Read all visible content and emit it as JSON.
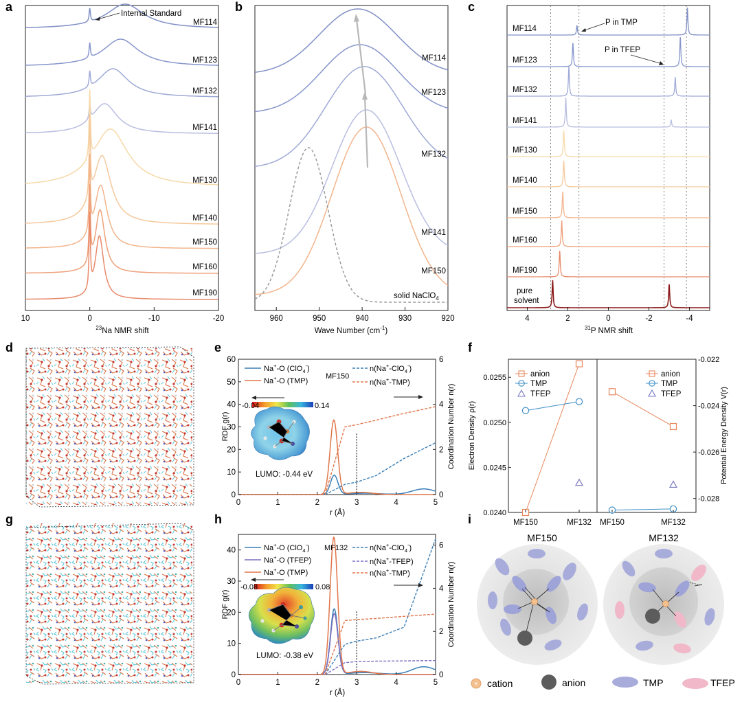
{
  "panel_letters": [
    "a",
    "b",
    "c",
    "d",
    "e",
    "f",
    "g",
    "h",
    "i"
  ],
  "colors": {
    "MF114": "#7f8fc5",
    "MF123": "#8796cc",
    "MF132": "#9ea9d6",
    "MF141": "#b8bde0",
    "MF130": "#f6d9a8",
    "MF140": "#f5c99c",
    "MF150": "#f2b48b",
    "MF160": "#eea07a",
    "MF190": "#e8896a",
    "pure solvent": "#8b1a1a",
    "solid": "#9a9a9a",
    "blue": "#3b7fb6",
    "orange": "#e0764a",
    "purple": "#7b6fbf",
    "anion_sq": "#e8875d",
    "tmp_circle": "#3b8fc7",
    "tfep_tri": "#7a7ac0"
  },
  "chart_data": [
    {
      "id": "a",
      "type": "line",
      "title": "",
      "xlabel": "23Na NMR shift",
      "xlabel_sup": "23",
      "xlabel_rest": "Na NMR shift",
      "ylabel": "",
      "xlim": [
        10,
        -20
      ],
      "xticks": [
        "10",
        "0",
        "-10",
        "-20"
      ],
      "annotation": "Internal Standard",
      "series": [
        {
          "name": "MF114",
          "peak_ppm": -5.5,
          "width": 3.6
        },
        {
          "name": "MF123",
          "peak_ppm": -4.8,
          "width": 3.4
        },
        {
          "name": "MF132",
          "peak_ppm": -3.6,
          "width": 2.9
        },
        {
          "name": "MF141",
          "peak_ppm": -2.3,
          "width": 2.4
        },
        {
          "name": "MF130",
          "peak_ppm": -3.2,
          "width": 3.3
        },
        {
          "name": "MF140",
          "peak_ppm": -1.9,
          "width": 1.7
        },
        {
          "name": "MF150",
          "peak_ppm": -1.7,
          "width": 1.2
        },
        {
          "name": "MF160",
          "peak_ppm": -1.6,
          "width": 0.9
        },
        {
          "name": "MF190",
          "peak_ppm": -1.5,
          "width": 0.8
        }
      ]
    },
    {
      "id": "b",
      "type": "line",
      "title": "",
      "xlabel": "Wave Number (cm-1)",
      "xlabel_main": "Wave Number (cm",
      "xlabel_sup": "-1",
      "xlabel_end": ")",
      "ylabel": "",
      "xlim": [
        965,
        920
      ],
      "xticks": [
        "960",
        "950",
        "940",
        "930",
        "920"
      ],
      "series": [
        {
          "name": "MF114",
          "center": 941,
          "width": 9
        },
        {
          "name": "MF123",
          "center": 940.5,
          "width": 9
        },
        {
          "name": "MF132",
          "center": 939.5,
          "width": 9
        },
        {
          "name": "MF141",
          "center": 939,
          "width": 8
        },
        {
          "name": "MF150",
          "center": 939,
          "width": 8
        },
        {
          "name": "solid NaClO4",
          "center": 952.5,
          "width": 4.5
        }
      ],
      "solid_label_main": "solid NaClO",
      "solid_label_sub": "4"
    },
    {
      "id": "c",
      "type": "line",
      "title": "",
      "xlabel": "31P NMR shift",
      "xlabel_sup": "31",
      "xlabel_rest": "P NMR shift",
      "ylabel": "",
      "xlim": [
        5,
        -5
      ],
      "xticks": [
        "4",
        "2",
        "0",
        "-2",
        "-4"
      ],
      "annotations": [
        "P in TMP",
        "P in TFEP"
      ],
      "series": [
        {
          "name": "MF114",
          "p1": 1.55,
          "h1": 0.35,
          "p2": -3.9,
          "h2": 1.0
        },
        {
          "name": "MF123",
          "p1": 1.75,
          "h1": 0.8,
          "p2": -3.55,
          "h2": 1.0
        },
        {
          "name": "MF132",
          "p1": 1.95,
          "h1": 1.0,
          "p2": -3.3,
          "h2": 0.65
        },
        {
          "name": "MF141",
          "p1": 2.1,
          "h1": 1.0,
          "p2": -3.1,
          "h2": 0.25
        },
        {
          "name": "MF130",
          "p1": 2.2,
          "h1": 1.0
        },
        {
          "name": "MF140",
          "p1": 2.2,
          "h1": 1.0
        },
        {
          "name": "MF150",
          "p1": 2.25,
          "h1": 1.0
        },
        {
          "name": "MF160",
          "p1": 2.3,
          "h1": 1.0
        },
        {
          "name": "MF190",
          "p1": 2.4,
          "h1": 1.0
        },
        {
          "name": "pure solvent",
          "label_lines": [
            "pure",
            "solvent"
          ],
          "p1": 2.75,
          "h1": 1.0,
          "p2": -3.0,
          "h2": 0.85
        }
      ]
    },
    {
      "id": "e",
      "type": "line",
      "title": "MF150",
      "xlabel": "r (Å)",
      "ylabel": "RDF g(r)",
      "ylabel2": "Coordination Number n(r)",
      "xlim": [
        0,
        5
      ],
      "ylim": [
        0,
        60
      ],
      "y2lim": [
        0,
        6
      ],
      "xticks": [
        "0",
        "1",
        "2",
        "3",
        "4",
        "5"
      ],
      "yticks": [
        "0",
        "10",
        "20",
        "30",
        "40",
        "50",
        "60"
      ],
      "y2ticks": [
        "0",
        "2",
        "4",
        "6"
      ],
      "legend_left": [
        {
          "name": "Na+-O (ClO4-)",
          "color": "blue"
        },
        {
          "name": "Na+-O (TMP)",
          "color": "orange"
        }
      ],
      "legend_right": [
        {
          "name": "n(Na+-ClO4-)",
          "color": "blue"
        },
        {
          "name": "n(Na+-TMP)",
          "color": "orange"
        }
      ],
      "rdf": [
        {
          "name": "ClO4",
          "peak_r": 2.43,
          "peak_g": 8.5
        },
        {
          "name": "TMP",
          "peak_r": 2.42,
          "peak_g": 33
        }
      ],
      "cn": [
        {
          "name": "ClO4",
          "values": [
            0,
            0,
            0,
            0,
            0.45,
            0.55,
            0.85,
            1.6,
            2.3
          ]
        },
        {
          "name": "TMP",
          "values": [
            0,
            0,
            0,
            0,
            3.0,
            3.1,
            3.3,
            3.6,
            3.9
          ]
        }
      ],
      "cn_r": [
        0,
        1,
        2,
        2.2,
        2.7,
        3.0,
        3.5,
        4.2,
        5.0
      ],
      "cutoff_r": 3.0,
      "colorbar": [
        "-0.04",
        "0.14"
      ],
      "lumo": "LUMO:  -0.44 eV"
    },
    {
      "id": "f",
      "type": "scatter",
      "title": "",
      "xlabel": "",
      "ylabel": "Electron Density ρ(r)",
      "ylabel2": "Potential Energy Density V(r)",
      "categories": [
        "MF150",
        "MF132"
      ],
      "left_ylim": [
        0.024,
        0.0257
      ],
      "left_yticks": [
        "0.0240",
        "0.0245",
        "0.0250",
        "0.0255"
      ],
      "right_ylim": [
        -0.0286,
        -0.022
      ],
      "right_yticks": [
        "-0.022",
        "-0.024",
        "-0.026",
        "-0.028"
      ],
      "legend": [
        "anion",
        "TMP",
        "TFEP"
      ],
      "left_series": [
        {
          "name": "anion",
          "values": [
            0.024,
            0.02565
          ]
        },
        {
          "name": "TMP",
          "values": [
            0.02513,
            0.02523
          ]
        },
        {
          "name": "TFEP",
          "values": [
            null,
            0.02433
          ]
        }
      ],
      "right_series": [
        {
          "name": "anion",
          "values": [
            -0.0234,
            -0.0249
          ]
        },
        {
          "name": "TMP",
          "values": [
            -0.0285,
            -0.02845
          ]
        },
        {
          "name": "TFEP",
          "values": [
            null,
            -0.0274
          ]
        }
      ]
    },
    {
      "id": "h",
      "type": "line",
      "title": "MF132",
      "xlabel": "r (Å)",
      "ylabel": "RDF g(r)",
      "ylabel2": "Coordination Number n(r)",
      "xlim": [
        0,
        5
      ],
      "ylim": [
        0,
        45
      ],
      "y2lim": [
        0,
        6.5
      ],
      "xticks": [
        "0",
        "1",
        "2",
        "3",
        "4",
        "5"
      ],
      "yticks": [
        "0",
        "10",
        "20",
        "30",
        "40"
      ],
      "y2ticks": [
        "0",
        "2",
        "4",
        "6"
      ],
      "legend_left": [
        {
          "name": "Na+-O (ClO4-)",
          "color": "blue"
        },
        {
          "name": "Na+-O (TFEP)",
          "color": "purple"
        },
        {
          "name": "Na+-O (TMP)",
          "color": "orange"
        }
      ],
      "legend_right": [
        {
          "name": "n(Na+-ClO4-)",
          "color": "blue"
        },
        {
          "name": "n(Na+-TFEP)",
          "color": "purple"
        },
        {
          "name": "n(Na+-TMP)",
          "color": "orange"
        }
      ],
      "rdf": [
        {
          "name": "ClO4",
          "peak_r": 2.43,
          "peak_g": 21
        },
        {
          "name": "TFEP",
          "peak_r": 2.43,
          "peak_g": 19.5
        },
        {
          "name": "TMP",
          "peak_r": 2.42,
          "peak_g": 44
        }
      ],
      "cn": [
        {
          "name": "ClO4",
          "values": [
            0,
            0,
            0,
            0,
            1.4,
            1.55,
            1.7,
            2.2,
            6.3
          ]
        },
        {
          "name": "TFEP",
          "values": [
            0,
            0,
            0,
            0,
            0.55,
            0.6,
            0.62,
            0.63,
            0.65
          ]
        },
        {
          "name": "TMP",
          "values": [
            0,
            0,
            0,
            0,
            2.5,
            2.55,
            2.6,
            2.7,
            2.8
          ]
        }
      ],
      "cn_r": [
        0,
        1,
        2,
        2.2,
        2.7,
        3.0,
        3.5,
        4.2,
        5.0
      ],
      "cutoff_r": 3.0,
      "colorbar": [
        "-0.08",
        "0.08"
      ],
      "lumo": "LUMO:  -0.38 eV"
    }
  ],
  "schematic": {
    "left_title": "MF150",
    "right_title": "MF132",
    "legend": [
      "cation",
      "anion",
      "TMP",
      "TFEP"
    ]
  }
}
